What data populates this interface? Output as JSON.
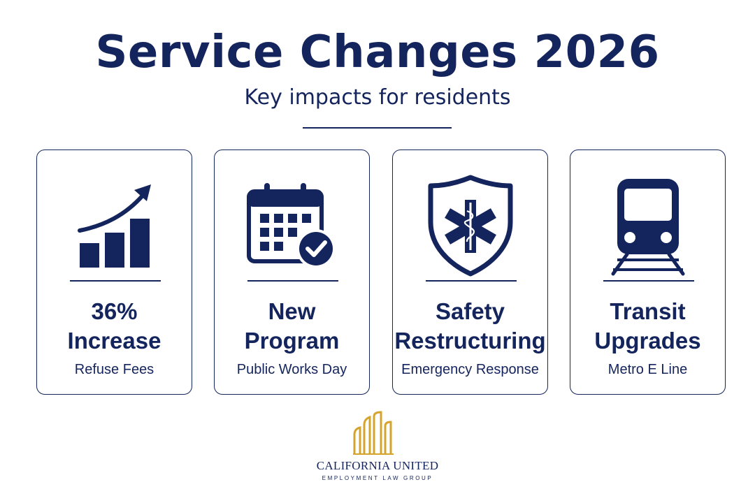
{
  "header": {
    "title": "Service Changes 2026",
    "subtitle": "Key impacts for residents"
  },
  "cards": [
    {
      "icon": "trending-up-bar-chart-icon",
      "headline_line1": "36%",
      "headline_line2": "Increase",
      "caption": "Refuse Fees"
    },
    {
      "icon": "calendar-check-icon",
      "headline_line1": "New",
      "headline_line2": "Program",
      "caption": "Public Works Day"
    },
    {
      "icon": "medical-shield-icon",
      "headline_line1": "Safety",
      "headline_line2": "Restructuring",
      "caption": "Emergency Response"
    },
    {
      "icon": "train-icon",
      "headline_line1": "Transit",
      "headline_line2": "Upgrades",
      "caption": "Metro E Line"
    }
  ],
  "footer": {
    "logo_icon": "building-skyline-logo",
    "company_name": "CALIFORNIA UNITED",
    "company_sub": "EMPLOYMENT LAW GROUP"
  },
  "colors": {
    "navy": "#14245c",
    "gold": "#d4a42c",
    "background": "#ffffff"
  }
}
